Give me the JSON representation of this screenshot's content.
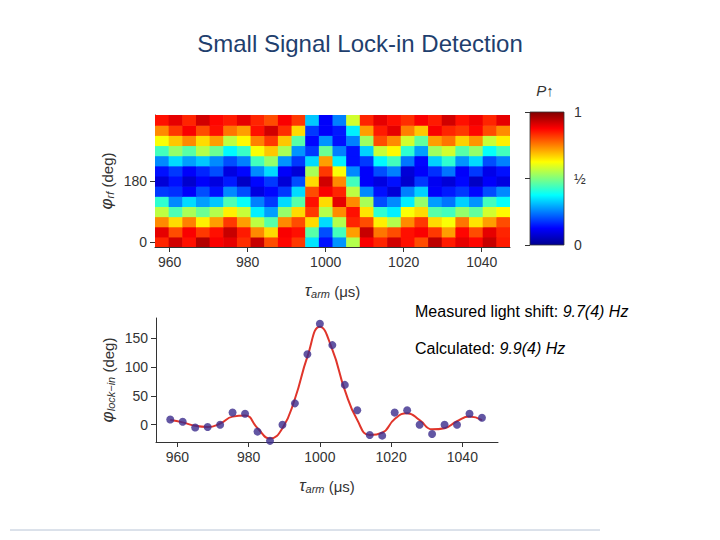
{
  "title": "Small Signal Lock-in Detection",
  "annotations": [
    {
      "text": "Measured light shift:",
      "value": "9.7(4) Hz"
    },
    {
      "text": "Calculated:",
      "value": "9.9(4) Hz"
    }
  ],
  "chart_data": [
    {
      "type": "heatmap",
      "x_label": "τarm (μs)",
      "y_label": "φrf (deg)",
      "x": [
        958,
        961.5,
        965,
        968.5,
        972,
        975.5,
        979,
        982.5,
        986,
        989.5,
        993,
        996.5,
        1000,
        1003.5,
        1007,
        1010.5,
        1014,
        1017.5,
        1021,
        1024.5,
        1028,
        1031.5,
        1035,
        1038.5,
        1042,
        1045.5
      ],
      "y": [
        0,
        30,
        60,
        90,
        120,
        150,
        180,
        210,
        240,
        270,
        300,
        330,
        360
      ],
      "z": [
        [
          0.84,
          0.92,
          0.86,
          0.95,
          0.88,
          0.9,
          0.83,
          0.93,
          0.8,
          0.87,
          0.82,
          0.35,
          0.14,
          0.27,
          0.55,
          0.88,
          0.84,
          0.92,
          0.86,
          0.8,
          0.94,
          0.85,
          0.9,
          0.87,
          0.93,
          0.85
        ],
        [
          0.9,
          0.8,
          0.88,
          0.82,
          0.86,
          0.93,
          0.85,
          0.74,
          0.66,
          0.88,
          0.86,
          0.46,
          0.2,
          0.44,
          0.72,
          0.93,
          0.76,
          0.8,
          0.86,
          0.88,
          0.82,
          0.72,
          0.87,
          0.8,
          0.9,
          0.84
        ],
        [
          0.74,
          0.66,
          0.75,
          0.64,
          0.72,
          0.82,
          0.72,
          0.56,
          0.46,
          0.74,
          0.8,
          0.66,
          0.34,
          0.55,
          0.84,
          0.8,
          0.64,
          0.55,
          0.74,
          0.82,
          0.66,
          0.62,
          0.76,
          0.65,
          0.72,
          0.8
        ],
        [
          0.56,
          0.45,
          0.54,
          0.48,
          0.55,
          0.64,
          0.57,
          0.36,
          0.28,
          0.52,
          0.66,
          0.82,
          0.55,
          0.74,
          0.86,
          0.65,
          0.42,
          0.36,
          0.62,
          0.66,
          0.46,
          0.44,
          0.52,
          0.47,
          0.58,
          0.63
        ],
        [
          0.42,
          0.26,
          0.34,
          0.28,
          0.32,
          0.45,
          0.38,
          0.25,
          0.18,
          0.34,
          0.46,
          0.86,
          0.66,
          0.9,
          0.74,
          0.54,
          0.2,
          0.26,
          0.36,
          0.52,
          0.28,
          0.24,
          0.33,
          0.27,
          0.44,
          0.38
        ],
        [
          0.18,
          0.17,
          0.12,
          0.2,
          0.14,
          0.26,
          0.2,
          0.09,
          0.13,
          0.18,
          0.34,
          0.8,
          0.88,
          0.84,
          0.56,
          0.26,
          0.14,
          0.08,
          0.25,
          0.33,
          0.12,
          0.15,
          0.18,
          0.13,
          0.2,
          0.26
        ],
        [
          0.08,
          0.14,
          0.07,
          0.12,
          0.09,
          0.15,
          0.06,
          0.13,
          0.18,
          0.08,
          0.2,
          0.66,
          0.92,
          0.74,
          0.44,
          0.12,
          0.09,
          0.14,
          0.07,
          0.18,
          0.11,
          0.08,
          0.13,
          0.06,
          0.12,
          0.09
        ],
        [
          0.14,
          0.18,
          0.12,
          0.16,
          0.2,
          0.09,
          0.13,
          0.26,
          0.34,
          0.12,
          0.08,
          0.54,
          0.82,
          0.62,
          0.26,
          0.12,
          0.2,
          0.25,
          0.08,
          0.12,
          0.17,
          0.24,
          0.12,
          0.18,
          0.1,
          0.14
        ],
        [
          0.26,
          0.34,
          0.28,
          0.32,
          0.26,
          0.2,
          0.25,
          0.44,
          0.52,
          0.27,
          0.18,
          0.34,
          0.72,
          0.36,
          0.14,
          0.18,
          0.37,
          0.44,
          0.24,
          0.13,
          0.33,
          0.42,
          0.27,
          0.34,
          0.2,
          0.25
        ],
        [
          0.44,
          0.52,
          0.46,
          0.55,
          0.48,
          0.37,
          0.43,
          0.62,
          0.68,
          0.54,
          0.27,
          0.18,
          0.48,
          0.25,
          0.14,
          0.33,
          0.57,
          0.63,
          0.42,
          0.28,
          0.53,
          0.58,
          0.46,
          0.52,
          0.38,
          0.44
        ],
        [
          0.62,
          0.68,
          0.74,
          0.66,
          0.72,
          0.56,
          0.63,
          0.75,
          0.82,
          0.68,
          0.46,
          0.13,
          0.27,
          0.14,
          0.25,
          0.53,
          0.8,
          0.74,
          0.58,
          0.47,
          0.72,
          0.76,
          0.67,
          0.73,
          0.57,
          0.64
        ],
        [
          0.74,
          0.82,
          0.88,
          0.8,
          0.86,
          0.76,
          0.72,
          0.86,
          0.92,
          0.83,
          0.66,
          0.18,
          0.12,
          0.15,
          0.36,
          0.72,
          0.85,
          0.9,
          0.75,
          0.68,
          0.88,
          0.84,
          0.82,
          0.87,
          0.8,
          0.74
        ],
        [
          0.86,
          0.9,
          0.84,
          0.92,
          0.87,
          0.85,
          0.9,
          0.84,
          0.8,
          0.88,
          0.82,
          0.32,
          0.12,
          0.25,
          0.58,
          0.84,
          0.9,
          0.86,
          0.83,
          0.88,
          0.85,
          0.92,
          0.86,
          0.89,
          0.84,
          0.9
        ]
      ],
      "xlim": [
        956.25,
        1047.25
      ],
      "xticks": [
        960,
        980,
        1000,
        1020,
        1040
      ],
      "ylim": [
        -15,
        375
      ],
      "yticks": [
        0,
        180
      ],
      "colorbar": {
        "label": "P↑",
        "range": [
          0,
          1
        ],
        "ticks": [
          0,
          {
            "value": 0.5,
            "label": "½"
          },
          1
        ]
      }
    },
    {
      "type": "scatter",
      "x_label": "τarm (μs)",
      "y_label": "φlock−in (deg)",
      "x": [
        958,
        961.5,
        965,
        968.5,
        972,
        975.5,
        979,
        982.5,
        986,
        989.5,
        993,
        996.5,
        1000,
        1003.5,
        1007,
        1010.5,
        1014,
        1017.5,
        1021,
        1024.5,
        1028,
        1031.5,
        1035,
        1038.5,
        1042,
        1045.5
      ],
      "series": [
        {
          "type": "line",
          "color": "#e0352b",
          "line_style": "solid",
          "values": [
            8,
            4,
            -2,
            -4,
            2,
            14,
            16,
            -6,
            -24,
            -6,
            45,
            118,
            170,
            130,
            60,
            8,
            -18,
            -14,
            10,
            20,
            8,
            -8,
            -6,
            6,
            14,
            8
          ]
        },
        {
          "type": "scatter",
          "color": "#3b2c8c",
          "marker": "circle",
          "values": [
            9,
            5,
            -5,
            -4,
            0,
            21,
            19,
            -12,
            -28,
            0,
            37,
            122,
            175,
            138,
            69,
            25,
            -18,
            -19,
            21,
            25,
            0,
            -16,
            0,
            0,
            19,
            12
          ]
        }
      ],
      "xlim": [
        954,
        1050
      ],
      "xticks": [
        960,
        980,
        1000,
        1020,
        1040
      ],
      "ylim": [
        -30,
        185
      ],
      "yticks": [
        0,
        50,
        100,
        150
      ]
    }
  ]
}
